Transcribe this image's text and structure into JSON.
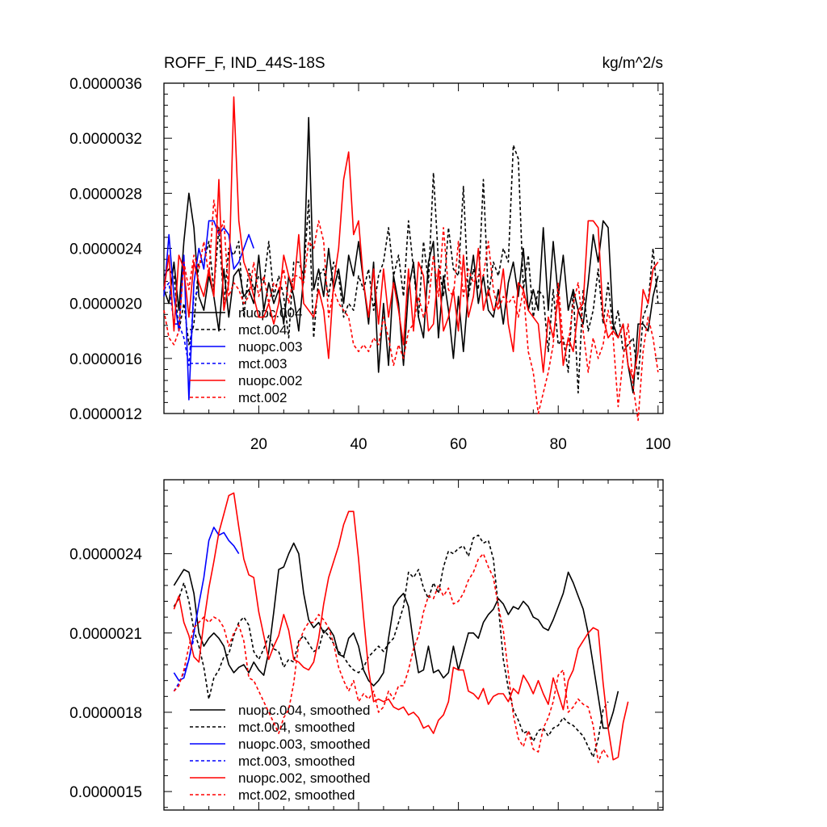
{
  "chart_data": [
    {
      "type": "line",
      "title": "ROFF_F, IND_44S-18S",
      "units": "kg/m^2/s",
      "xlabel": "",
      "ylabel": "",
      "xlim": [
        1,
        101
      ],
      "ylim": [
        1.2e-06,
        3.6e-06
      ],
      "xticks": [
        20,
        40,
        60,
        80,
        100
      ],
      "xtick_labels": [
        "20",
        "40",
        "60",
        "80",
        "100"
      ],
      "yticks": [
        1.2e-06,
        1.6e-06,
        2e-06,
        2.4e-06,
        2.8e-06,
        3.2e-06,
        3.6e-06
      ],
      "ytick_labels": [
        "0.0000012",
        "0.0000016",
        "0.0000020",
        "0.0000024",
        "0.0000028",
        "0.0000032",
        "0.0000036"
      ],
      "legend_position": "bottom-left",
      "series": [
        {
          "name": "nuopc.004",
          "color": "#000000",
          "dash": "solid",
          "x_start": 1,
          "values": [
            2.1,
            2.0,
            2.3,
            1.95,
            2.45,
            2.8,
            2.55,
            2.05,
            1.95,
            2.2,
            2.05,
            1.8,
            2.25,
            1.9,
            2.2,
            2.25,
            2.05,
            2.1,
            2.0,
            2.35,
            1.95,
            2.15,
            2.0,
            2.1,
            1.85,
            2.2,
            2.05,
            1.8,
            2.2,
            3.35,
            2.1,
            2.25,
            2.05,
            2.4,
            2.1,
            2.25,
            2.0,
            2.35,
            2.2,
            2.45,
            2.15,
            1.85,
            2.3,
            1.5,
            2.0,
            1.55,
            2.2,
            2.0,
            1.55,
            2.1,
            2.3,
            1.9,
            1.75,
            2.3,
            2.45,
            1.75,
            2.2,
            1.95,
            1.6,
            2.05,
            1.65,
            2.1,
            2.35,
            2.0,
            2.2,
            1.95,
            1.9,
            2.1,
            1.85,
            2.15,
            2.3,
            2.05,
            2.4,
            1.95,
            2.1,
            1.95,
            2.55,
            1.95,
            2.45,
            2.05,
            2.35,
            1.95,
            2.1,
            1.95,
            1.85,
            2.15,
            2.5,
            2.3,
            2.6,
            2.55,
            1.85,
            1.75,
            1.85,
            1.55,
            1.35,
            1.85,
            1.85,
            1.8,
            2.05,
            2.2
          ]
        },
        {
          "name": "mct.004",
          "color": "#000000",
          "dash": "dashed",
          "x_start": 1,
          "values": [
            2.2,
            2.25,
            2.2,
            1.8,
            2.0,
            1.7,
            1.85,
            2.3,
            2.3,
            2.45,
            2.1,
            2.55,
            2.0,
            2.4,
            2.35,
            2.45,
            1.9,
            2.25,
            2.1,
            2.2,
            2.15,
            2.45,
            2.05,
            2.2,
            2.05,
            1.75,
            2.3,
            2.3,
            2.2,
            2.75,
            1.75,
            2.2,
            2.25,
            2.05,
            2.3,
            2.2,
            1.9,
            2.0,
            1.95,
            2.2,
            2.1,
            2.25,
            1.95,
            2.2,
            2.3,
            2.55,
            2.2,
            2.35,
            2.05,
            2.6,
            2.25,
            1.9,
            2.45,
            2.15,
            2.95,
            2.3,
            2.05,
            2.55,
            2.25,
            2.2,
            2.85,
            2.05,
            2.25,
            2.1,
            2.9,
            2.05,
            2.3,
            2.2,
            2.4,
            2.3,
            3.15,
            3.05,
            2.1,
            2.35,
            1.9,
            2.1,
            2.05,
            1.65,
            2.1,
            1.7,
            1.75,
            1.5,
            2.1,
            1.35,
            2.1,
            1.8,
            1.95,
            2.25,
            1.85,
            2.15,
            1.8,
            1.95,
            1.65,
            1.7,
            1.75,
            1.45,
            1.9,
            2.0,
            2.4,
            2.0
          ]
        },
        {
          "name": "nuopc.003",
          "color": "#0000ff",
          "dash": "solid",
          "x_start": 1,
          "values": [
            2.05,
            2.5,
            2.05,
            1.8,
            2.35,
            1.3,
            2.15,
            2.4,
            2.25,
            2.6,
            2.6,
            2.5,
            2.55,
            2.5,
            2.25,
            2.3,
            2.4,
            2.5,
            2.4
          ]
        },
        {
          "name": "mct.003",
          "color": "#0000ff",
          "dash": "dashed",
          "x_start": 1,
          "values": [
            2.1,
            2.15,
            1.85,
            1.85,
            1.75,
            1.55,
            2.05,
            2.1
          ]
        },
        {
          "name": "nuopc.002",
          "color": "#ff0000",
          "dash": "solid",
          "x_start": 1,
          "values": [
            2.1,
            2.35,
            1.8,
            2.35,
            2.25,
            1.9,
            2.3,
            2.15,
            2.05,
            2.25,
            2.05,
            2.9,
            1.95,
            2.15,
            3.5,
            2.6,
            2.3,
            2.2,
            2.05,
            1.9,
            1.9,
            2.0,
            1.85,
            2.0,
            2.35,
            2.2,
            2.1,
            2.5,
            2.0,
            1.95,
            1.9,
            2.1,
            1.95,
            1.6,
            2.15,
            2.4,
            2.9,
            3.1,
            2.5,
            2.6,
            2.15,
            1.9,
            2.25,
            1.85,
            2.25,
            1.9,
            2.15,
            1.95,
            1.7,
            2.25,
            1.8,
            2.3,
            2.2,
            1.8,
            1.85,
            2.25,
            1.8,
            1.9,
            2.1,
            1.8,
            2.35,
            1.9,
            2.05,
            2.4,
            1.95,
            2.1,
            1.95,
            2.0,
            2.25,
            1.85,
            1.65,
            2.15,
            2.1,
            1.95,
            1.9,
            1.85,
            1.5,
            1.9,
            1.75,
            2.05,
            1.55,
            1.75,
            1.65,
            1.95,
            2.0,
            2.6,
            2.6,
            2.55,
            1.9,
            1.75,
            1.8,
            1.75,
            1.85,
            1.55,
            1.45,
            1.65,
            2.1,
            2.0,
            2.25,
            2.3
          ]
        },
        {
          "name": "mct.002",
          "color": "#ff0000",
          "dash": "dashed",
          "x_start": 1,
          "values": [
            1.95,
            1.75,
            1.7,
            1.8,
            2.3,
            2.1,
            2.35,
            2.25,
            2.45,
            2.2,
            2.75,
            2.5,
            2.6,
            2.05,
            2.15,
            2.1,
            2.0,
            2.05,
            2.3,
            2.05,
            2.2,
            2.0,
            2.15,
            2.1,
            2.25,
            2.0,
            2.2,
            2.2,
            2.15,
            2.45,
            2.4,
            2.6,
            2.45,
            1.9,
            2.1,
            2.0,
            1.95,
            1.9,
            1.7,
            1.65,
            1.7,
            1.65,
            1.75,
            1.7,
            1.9,
            1.75,
            1.55,
            1.7,
            1.6,
            1.8,
            1.85,
            2.05,
            1.9,
            2.0,
            2.35,
            2.05,
            2.55,
            2.1,
            2.05,
            2.45,
            2.05,
            2.25,
            2.15,
            2.2,
            2.2,
            2.45,
            2.1,
            1.95,
            2.05,
            2.0,
            2.05,
            1.9,
            2.1,
            1.65,
            1.5,
            1.2,
            1.35,
            1.5,
            1.7,
            2.15,
            1.7,
            1.7,
            2.0,
            2.15,
            1.8,
            1.5,
            1.75,
            1.6,
            1.7,
            1.95,
            1.75,
            1.25,
            1.6,
            1.85,
            1.4,
            1.15,
            1.65,
            1.9,
            1.75,
            1.5
          ]
        }
      ],
      "legend_entries": [
        "nuopc.004",
        "mct.004",
        "nuopc.003",
        "mct.003",
        "nuopc.002",
        "mct.002"
      ]
    },
    {
      "type": "line",
      "title": "",
      "xlabel": "",
      "ylabel": "",
      "xlim": [
        1,
        101
      ],
      "ylim": [
        1.43e-06,
        2.68e-06
      ],
      "xticks": [
        20,
        40,
        60,
        80,
        100
      ],
      "xtick_labels": [],
      "yticks": [
        1.5e-06,
        1.8e-06,
        2.1e-06,
        2.4e-06
      ],
      "ytick_labels": [
        "0.0000015",
        "0.0000018",
        "0.0000021",
        "0.0000024"
      ],
      "legend_position": "bottom-left",
      "series": [
        {
          "name": "nuopc.004, smoothed",
          "color": "#000000",
          "dash": "solid",
          "x_start": 3,
          "values": [
            2.28,
            2.31,
            2.34,
            2.33,
            2.25,
            2.1,
            2.05,
            2.08,
            2.1,
            2.08,
            2.05,
            1.98,
            1.95,
            1.97,
            1.98,
            1.95,
            1.99,
            1.96,
            1.94,
            2.03,
            2.18,
            2.34,
            2.35,
            2.4,
            2.44,
            2.4,
            2.25,
            2.15,
            2.12,
            2.14,
            2.1,
            2.12,
            2.09,
            2.02,
            2.01,
            2.08,
            2.1,
            2.05,
            1.96,
            1.92,
            1.9,
            1.92,
            1.95,
            2.08,
            2.2,
            2.23,
            2.25,
            2.2,
            2.06,
            1.95,
            1.96,
            2.05,
            1.95,
            1.96,
            1.93,
            1.95,
            2.05,
            1.96,
            2.03,
            2.1,
            2.1,
            2.08,
            2.14,
            2.17,
            2.19,
            2.23,
            2.21,
            2.17,
            2.2,
            2.19,
            2.22,
            2.2,
            2.16,
            2.15,
            2.12,
            2.11,
            2.15,
            2.2,
            2.25,
            2.33,
            2.29,
            2.24,
            2.19,
            2.1,
            1.98,
            1.86,
            1.74,
            1.74,
            1.8,
            1.88
          ]
        },
        {
          "name": "mct.004, smoothed",
          "color": "#000000",
          "dash": "dashed",
          "x_start": 3,
          "values": [
            2.2,
            2.23,
            2.29,
            2.22,
            2.11,
            2.05,
            1.97,
            1.85,
            1.93,
            1.96,
            2.01,
            2.02,
            2.09,
            2.14,
            2.16,
            2.13,
            2.03,
            2.0,
            2.04,
            2.09,
            2.04,
            2.03,
            1.97,
            2.0,
            1.99,
            2.07,
            2.09,
            2.06,
            2.03,
            2.04,
            2.11,
            2.09,
            2.06,
            2.03,
            2.01,
            1.98,
            1.96,
            1.95,
            1.97,
            2.01,
            2.03,
            2.05,
            2.03,
            2.06,
            2.08,
            2.14,
            2.2,
            2.33,
            2.31,
            2.34,
            2.27,
            2.23,
            2.29,
            2.25,
            2.35,
            2.41,
            2.4,
            2.42,
            2.43,
            2.39,
            2.46,
            2.47,
            2.44,
            2.45,
            2.38,
            2.2,
            2.0,
            1.89,
            1.81,
            1.77,
            1.72,
            1.73,
            1.69,
            1.73,
            1.74,
            1.71,
            1.74,
            1.75,
            1.78,
            1.76,
            1.75,
            1.73,
            1.71,
            1.67,
            1.63,
            1.7,
            1.81,
            1.84
          ]
        },
        {
          "name": "nuopc.003, smoothed",
          "color": "#0000ff",
          "dash": "solid",
          "x_start": 3,
          "values": [
            1.95,
            1.92,
            1.93,
            2.0,
            2.1,
            2.21,
            2.31,
            2.45,
            2.5,
            2.47,
            2.48,
            2.45,
            2.43,
            2.4
          ]
        },
        {
          "name": "mct.003, smoothed",
          "color": "#0000ff",
          "dash": "dashed",
          "x_start": 3,
          "values": [
            1.88,
            1.91,
            1.95,
            2.0,
            2.08
          ]
        },
        {
          "name": "nuopc.002, smoothed",
          "color": "#ff0000",
          "dash": "solid",
          "x_start": 3,
          "values": [
            2.19,
            2.24,
            2.14,
            2.09,
            2.01,
            1.99,
            2.14,
            2.27,
            2.37,
            2.48,
            2.55,
            2.62,
            2.63,
            2.5,
            2.38,
            2.32,
            2.31,
            2.18,
            2.09,
            2.0,
            2.05,
            2.09,
            2.17,
            2.11,
            2.0,
            1.99,
            1.97,
            1.96,
            1.99,
            2.08,
            2.21,
            2.31,
            2.37,
            2.43,
            2.51,
            2.56,
            2.56,
            2.38,
            2.16,
            1.96,
            1.84,
            1.85,
            1.84,
            1.85,
            1.82,
            1.81,
            1.82,
            1.79,
            1.8,
            1.78,
            1.74,
            1.75,
            1.72,
            1.77,
            1.79,
            1.84,
            1.97,
            1.96,
            1.96,
            1.88,
            1.87,
            1.85,
            1.89,
            1.83,
            1.86,
            1.87,
            1.87,
            1.84,
            1.89,
            1.87,
            1.94,
            1.91,
            1.87,
            1.92,
            1.87,
            1.83,
            1.93,
            1.87,
            1.81,
            1.92,
            1.96,
            2.04,
            2.07,
            2.1,
            2.12,
            2.11,
            1.91,
            1.74,
            1.62,
            1.63,
            1.76,
            1.84
          ]
        },
        {
          "name": "mct.002, smoothed",
          "color": "#ff0000",
          "dash": "dashed",
          "x_start": 3,
          "values": [
            1.88,
            1.9,
            1.96,
            2.05,
            2.12,
            2.14,
            2.16,
            2.14,
            2.16,
            2.15,
            2.12,
            2.05,
            2.1,
            2.13,
            2.07,
            1.93,
            1.92,
            1.88,
            1.84,
            1.8,
            1.76,
            1.72,
            1.78,
            1.81,
            1.91,
            2.06,
            2.11,
            2.14,
            2.14,
            2.17,
            2.15,
            2.12,
            2.06,
            1.97,
            1.92,
            1.88,
            1.92,
            1.84,
            1.87,
            1.85,
            1.88,
            1.8,
            1.82,
            1.88,
            1.85,
            1.9,
            1.9,
            1.96,
            2.04,
            2.09,
            2.18,
            2.24,
            2.23,
            2.28,
            2.24,
            2.27,
            2.21,
            2.22,
            2.25,
            2.3,
            2.33,
            2.38,
            2.4,
            2.35,
            2.31,
            2.2,
            2.11,
            1.95,
            1.79,
            1.7,
            1.67,
            1.73,
            1.66,
            1.65,
            1.74,
            1.78,
            1.84,
            1.94,
            1.96,
            1.8,
            1.82,
            1.85,
            1.83,
            1.82,
            1.75,
            1.61,
            1.66,
            1.63
          ]
        }
      ],
      "legend_entries": [
        "nuopc.004, smoothed",
        "mct.004, smoothed",
        "nuopc.003, smoothed",
        "mct.003, smoothed",
        "nuopc.002, smoothed",
        "mct.002, smoothed"
      ]
    }
  ]
}
